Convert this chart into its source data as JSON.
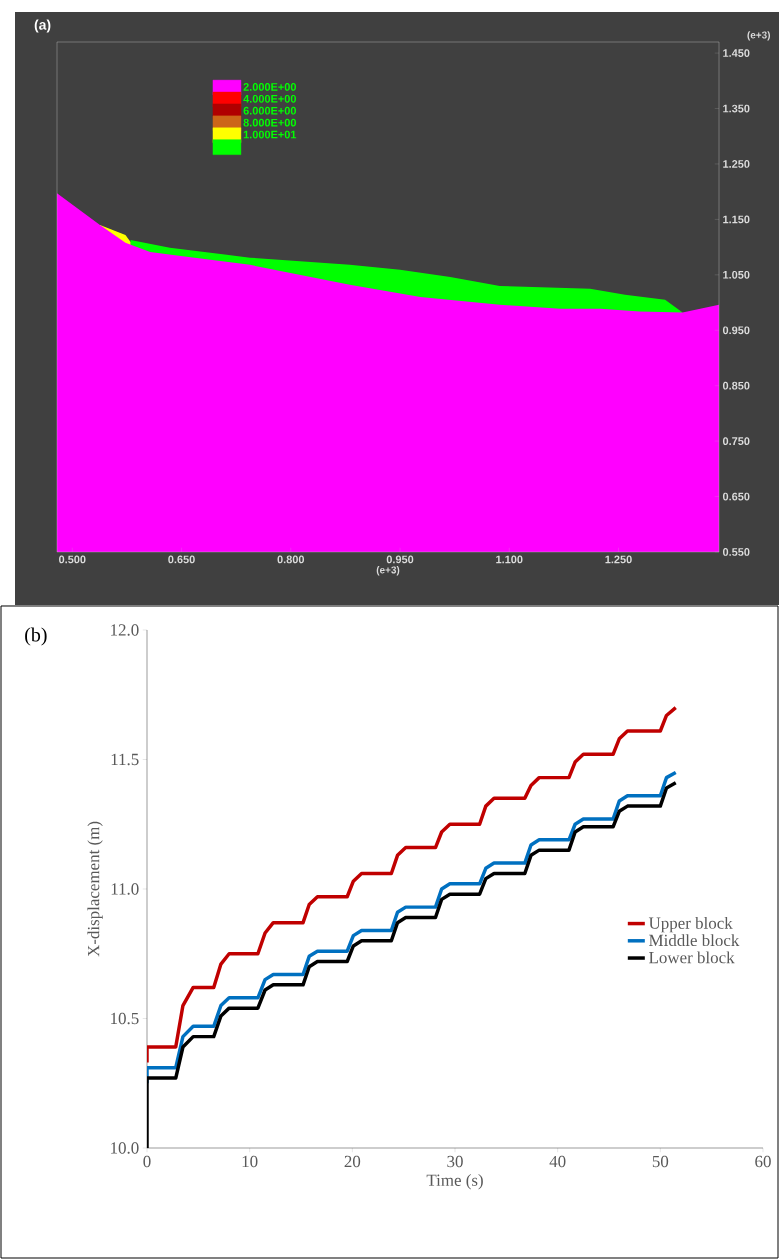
{
  "chart_data": [
    {
      "type": "area",
      "title": "(a)",
      "xlabel": "(e+3)",
      "ylabel": "(e+3)",
      "legend": "top",
      "xlim": [
        0.479,
        1.388
      ],
      "ylim": [
        0.55,
        1.47
      ],
      "xticks": [
        {
          "value": 0.5,
          "label": "0.500"
        },
        {
          "value": 0.65,
          "label": "0.650"
        },
        {
          "value": 0.8,
          "label": "0.800"
        },
        {
          "value": 0.95,
          "label": "0.950"
        },
        {
          "value": 1.1,
          "label": "1.100"
        },
        {
          "value": 1.25,
          "label": "1.250"
        }
      ],
      "yticks": [
        {
          "value": 0.55,
          "label": "0.550"
        },
        {
          "value": 0.65,
          "label": "0.650"
        },
        {
          "value": 0.75,
          "label": "0.750"
        },
        {
          "value": 0.85,
          "label": "0.850"
        },
        {
          "value": 0.95,
          "label": "0.950"
        },
        {
          "value": 1.05,
          "label": "1.050"
        },
        {
          "value": 1.15,
          "label": "1.150"
        },
        {
          "value": 1.25,
          "label": "1.250"
        },
        {
          "value": 1.35,
          "label": "1.350"
        },
        {
          "value": 1.45,
          "label": "1.450"
        }
      ],
      "series": [
        {
          "name": "2.000E+00",
          "color": "#ff00ff",
          "x": [
            0.479,
            0.538,
            0.573,
            0.607,
            0.744,
            0.881,
            0.978,
            1.087,
            1.17,
            1.225,
            1.279,
            1.338,
            1.388
          ],
          "values": [
            1.197,
            1.14,
            1.108,
            1.091,
            1.068,
            1.032,
            1.01,
            0.996,
            0.989,
            0.989,
            0.984,
            0.982,
            0.996
          ]
        },
        {
          "name": "4.000E+00",
          "color": "#ff0000",
          "values": [
            null
          ]
        },
        {
          "name": "6.000E+00",
          "color": "#b00000",
          "values": [
            null
          ]
        },
        {
          "name": "8.000E+00",
          "color": "#cc6619",
          "values": [
            null
          ]
        },
        {
          "name": "1.000E+01",
          "color": "#ffff00",
          "x": [
            0.538,
            0.573,
            0.58
          ],
          "values": [
            1.14,
            1.122,
            1.109
          ]
        },
        {
          "color": "#00ff00",
          "x": [
            0.58,
            0.634,
            0.744,
            0.881,
            0.95,
            1.019,
            1.087,
            1.211,
            1.259,
            1.314,
            1.338
          ],
          "values": [
            1.113,
            1.099,
            1.081,
            1.068,
            1.059,
            1.046,
            1.03,
            1.025,
            1.014,
            1.005,
            0.982
          ]
        }
      ]
    },
    {
      "type": "line",
      "title": "(b)",
      "xlabel": "Time (s)",
      "ylabel": "X-displacement (m)",
      "legend": "right",
      "xlim": [
        0,
        60
      ],
      "ylim": [
        10,
        12
      ],
      "xticks": [
        0,
        10,
        20,
        30,
        40,
        50,
        60
      ],
      "yticks": [
        {
          "value": 10,
          "label": "10.0"
        },
        {
          "value": 10.5,
          "label": "10.5"
        },
        {
          "value": 11,
          "label": "11.0"
        },
        {
          "value": 11.5,
          "label": "11.5"
        },
        {
          "value": 12,
          "label": "12.0"
        }
      ],
      "x": [
        0,
        0,
        2.8,
        3.5,
        4.5,
        6.5,
        7.2,
        8.0,
        10.8,
        11.5,
        12.3,
        15.2,
        15.8,
        16.6,
        19.5,
        20.1,
        20.9,
        23.8,
        24.4,
        25.2,
        28.1,
        28.7,
        29.5,
        32.4,
        33.0,
        33.8,
        36.8,
        37.4,
        38.2,
        41.1,
        41.7,
        42.5,
        45.4,
        46.0,
        46.8,
        50.0,
        50.6,
        51.5
      ],
      "series": [
        {
          "name": "Upper block",
          "color": "#c00000",
          "values": [
            10.33,
            10.39,
            10.39,
            10.55,
            10.62,
            10.62,
            10.71,
            10.75,
            10.75,
            10.83,
            10.87,
            10.87,
            10.94,
            10.97,
            10.97,
            11.03,
            11.06,
            11.06,
            11.13,
            11.16,
            11.16,
            11.22,
            11.25,
            11.25,
            11.32,
            11.35,
            11.35,
            11.4,
            11.43,
            11.43,
            11.49,
            11.52,
            11.52,
            11.58,
            11.61,
            11.61,
            11.67,
            11.7
          ]
        },
        {
          "name": "Middle block",
          "color": "#0070c0",
          "values": [
            10.25,
            10.31,
            10.31,
            10.43,
            10.47,
            10.47,
            10.55,
            10.58,
            10.58,
            10.65,
            10.67,
            10.67,
            10.74,
            10.76,
            10.76,
            10.82,
            10.84,
            10.84,
            10.91,
            10.93,
            10.93,
            11.0,
            11.02,
            11.02,
            11.08,
            11.1,
            11.1,
            11.17,
            11.19,
            11.19,
            11.25,
            11.27,
            11.27,
            11.34,
            11.36,
            11.36,
            11.43,
            11.45
          ]
        },
        {
          "name": "Lower block",
          "color": "#000000",
          "values": [
            10.0,
            10.27,
            10.27,
            10.39,
            10.43,
            10.43,
            10.51,
            10.54,
            10.54,
            10.61,
            10.63,
            10.63,
            10.7,
            10.72,
            10.72,
            10.78,
            10.8,
            10.8,
            10.87,
            10.89,
            10.89,
            10.96,
            10.98,
            10.98,
            11.04,
            11.06,
            11.06,
            11.13,
            11.15,
            11.15,
            11.22,
            11.24,
            11.24,
            11.3,
            11.32,
            11.32,
            11.39,
            11.41
          ]
        }
      ]
    }
  ]
}
